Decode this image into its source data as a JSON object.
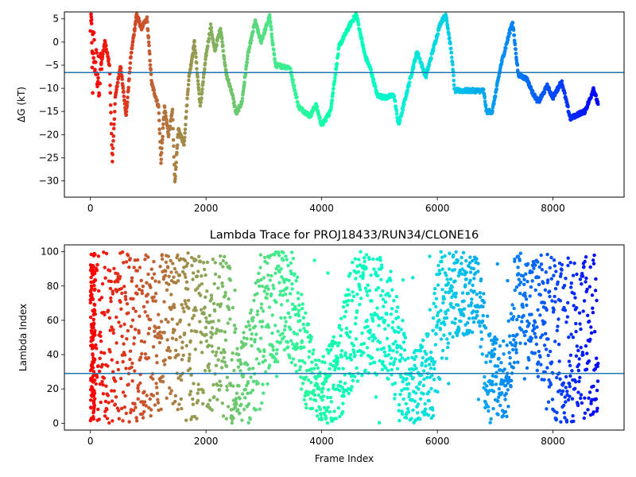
{
  "chart_data": [
    {
      "type": "scatter",
      "title": "",
      "xlabel": "",
      "ylabel": "ΔG (kT)",
      "xlim": [
        -450,
        9230
      ],
      "ylim": [
        -33.5,
        6.5
      ],
      "xticks": [
        0,
        2000,
        4000,
        6000,
        8000
      ],
      "yticks": [
        5,
        0,
        -5,
        -10,
        -15,
        -20,
        -25,
        -30
      ],
      "hline": -6.6,
      "hline_color": "#1f77b4",
      "colormap": "rainbow",
      "color_direction": "red-at-start-to-violet-at-end",
      "grid": false,
      "legend": "none",
      "trace_keypoints": [
        [
          0,
          4
        ],
        [
          60,
          -3
        ],
        [
          150,
          -7.5
        ],
        [
          250,
          0
        ],
        [
          330,
          -5
        ],
        [
          380,
          -26
        ],
        [
          430,
          -12
        ],
        [
          520,
          -5
        ],
        [
          620,
          -16
        ],
        [
          700,
          -3
        ],
        [
          800,
          6
        ],
        [
          880,
          3
        ],
        [
          980,
          5
        ],
        [
          1060,
          -9
        ],
        [
          1180,
          -14
        ],
        [
          1220,
          -26
        ],
        [
          1280,
          -14
        ],
        [
          1350,
          -20
        ],
        [
          1420,
          -15
        ],
        [
          1460,
          -30.5
        ],
        [
          1520,
          -19
        ],
        [
          1620,
          -22
        ],
        [
          1700,
          -8
        ],
        [
          1800,
          0
        ],
        [
          1900,
          -14
        ],
        [
          2000,
          -3
        ],
        [
          2080,
          3.5
        ],
        [
          2150,
          -2
        ],
        [
          2250,
          3
        ],
        [
          2350,
          -7
        ],
        [
          2450,
          -11
        ],
        [
          2520,
          -15.5
        ],
        [
          2620,
          -13
        ],
        [
          2720,
          -3
        ],
        [
          2850,
          4.5
        ],
        [
          2950,
          0
        ],
        [
          3100,
          5.5
        ],
        [
          3200,
          -5
        ],
        [
          3450,
          -5.5
        ],
        [
          3600,
          -14
        ],
        [
          3800,
          -16
        ],
        [
          3900,
          -13.5
        ],
        [
          4000,
          -18
        ],
        [
          4150,
          -15
        ],
        [
          4300,
          -1
        ],
        [
          4500,
          4
        ],
        [
          4600,
          6
        ],
        [
          4750,
          -3
        ],
        [
          4850,
          -6
        ],
        [
          4960,
          -11.5
        ],
        [
          5100,
          -12
        ],
        [
          5250,
          -11.5
        ],
        [
          5330,
          -18
        ],
        [
          5450,
          -12
        ],
        [
          5650,
          -2
        ],
        [
          5800,
          -7.5
        ],
        [
          6050,
          4
        ],
        [
          6150,
          6
        ],
        [
          6250,
          -3
        ],
        [
          6300,
          -10.5
        ],
        [
          6800,
          -10.5
        ],
        [
          6850,
          -15
        ],
        [
          6950,
          -15
        ],
        [
          7100,
          -5
        ],
        [
          7300,
          4.5
        ],
        [
          7400,
          -7
        ],
        [
          7550,
          -8
        ],
        [
          7650,
          -11
        ],
        [
          7750,
          -13
        ],
        [
          7900,
          -9.5
        ],
        [
          8000,
          -12
        ],
        [
          8150,
          -8.5
        ],
        [
          8300,
          -16.5
        ],
        [
          8450,
          -15.5
        ],
        [
          8550,
          -15
        ],
        [
          8650,
          -12
        ],
        [
          8700,
          -10
        ],
        [
          8780,
          -13.5
        ]
      ]
    },
    {
      "type": "scatter",
      "title": "Lambda Trace for PROJ18433/RUN34/CLONE16",
      "xlabel": "Frame Index",
      "ylabel": "Lambda Index",
      "xlim": [
        -450,
        9230
      ],
      "ylim": [
        -4,
        104
      ],
      "xticks": [
        0,
        2000,
        4000,
        6000,
        8000
      ],
      "yticks": [
        100,
        80,
        60,
        40,
        20,
        0
      ],
      "hline": 29,
      "hline_color": "#1f77b4",
      "colormap": "rainbow",
      "color_direction": "red-at-start-to-violet-at-end",
      "grid": false,
      "legend": "none",
      "frame_count": 8800,
      "density_profile": [
        [
          0,
          0,
          100
        ],
        [
          300,
          0,
          100
        ],
        [
          600,
          0,
          100
        ],
        [
          850,
          0,
          100
        ],
        [
          1000,
          5,
          100
        ],
        [
          1200,
          0,
          100
        ],
        [
          1400,
          10,
          100
        ],
        [
          1600,
          0,
          100
        ],
        [
          1800,
          0,
          100
        ],
        [
          2000,
          10,
          95
        ],
        [
          2200,
          5,
          100
        ],
        [
          2400,
          0,
          100
        ],
        [
          2550,
          0,
          40
        ],
        [
          2650,
          0,
          55
        ],
        [
          2800,
          0,
          70
        ],
        [
          2950,
          5,
          100
        ],
        [
          3150,
          30,
          100
        ],
        [
          3350,
          40,
          100
        ],
        [
          3550,
          30,
          100
        ],
        [
          3700,
          10,
          70
        ],
        [
          3900,
          0,
          40
        ],
        [
          4050,
          0,
          40
        ],
        [
          4200,
          0,
          50
        ],
        [
          4350,
          5,
          65
        ],
        [
          4550,
          20,
          100
        ],
        [
          4750,
          30,
          100
        ],
        [
          4900,
          20,
          100
        ],
        [
          5050,
          30,
          100
        ],
        [
          5200,
          20,
          90
        ],
        [
          5350,
          0,
          70
        ],
        [
          5500,
          0,
          40
        ],
        [
          5650,
          0,
          45
        ],
        [
          5800,
          0,
          50
        ],
        [
          5950,
          0,
          90
        ],
        [
          6100,
          40,
          100
        ],
        [
          6300,
          50,
          100
        ],
        [
          6500,
          50,
          100
        ],
        [
          6700,
          60,
          100
        ],
        [
          6850,
          0,
          65
        ],
        [
          7000,
          0,
          50
        ],
        [
          7200,
          0,
          50
        ],
        [
          7350,
          40,
          100
        ],
        [
          7550,
          40,
          100
        ],
        [
          7750,
          20,
          100
        ],
        [
          7900,
          5,
          100
        ],
        [
          8050,
          0,
          95
        ],
        [
          8200,
          0,
          95
        ],
        [
          8400,
          0,
          100
        ],
        [
          8600,
          0,
          100
        ],
        [
          8780,
          0,
          100
        ]
      ]
    }
  ]
}
